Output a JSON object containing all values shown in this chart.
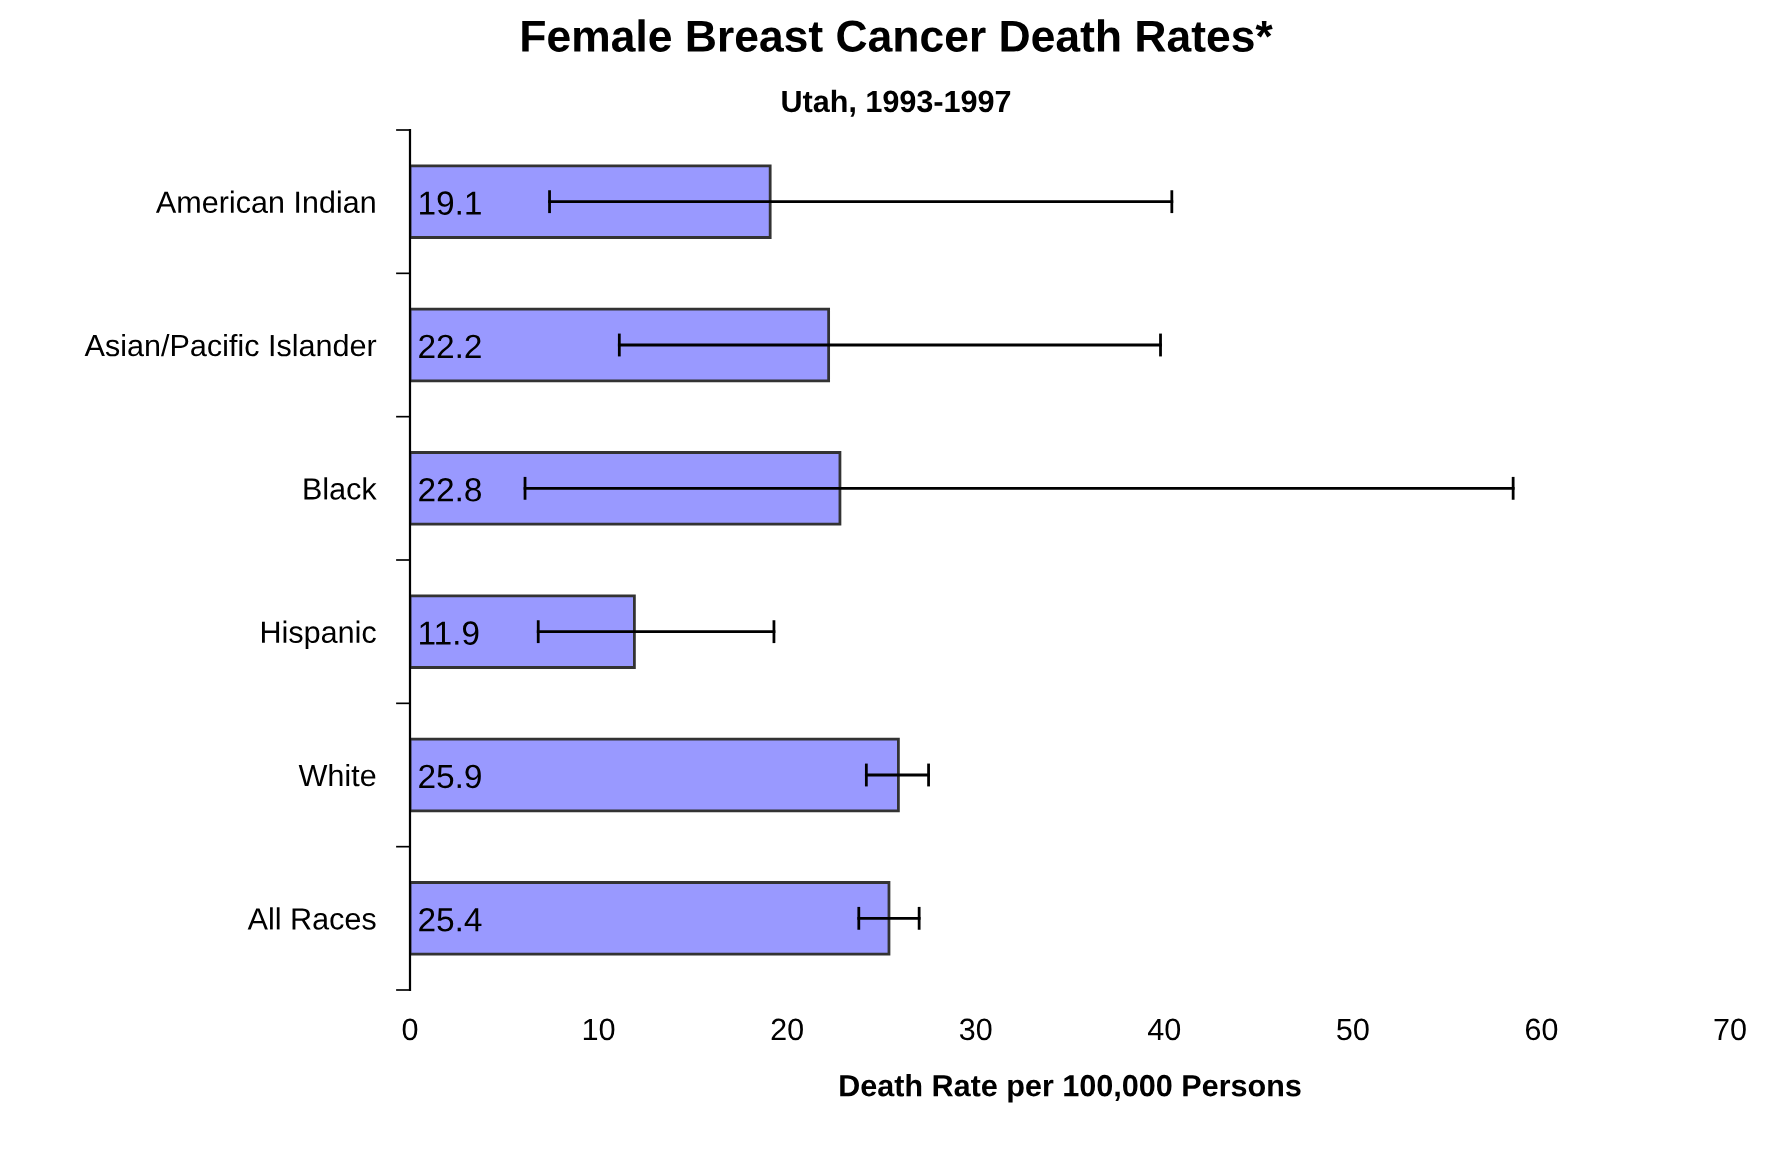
{
  "chart_data": {
    "type": "bar",
    "orientation": "horizontal",
    "title": "Female Breast Cancer Death Rates*",
    "subtitle": "Utah, 1993-1997",
    "xlabel": "Death Rate per 100,000 Persons",
    "categories": [
      "American Indian",
      "Asian/Pacific Islander",
      "Black",
      "Hispanic",
      "White",
      "All Races"
    ],
    "values": [
      19.1,
      22.2,
      22.8,
      11.9,
      25.9,
      25.4
    ],
    "errors": [
      [
        7.4,
        40.4
      ],
      [
        11.1,
        39.8
      ],
      [
        6.1,
        58.5
      ],
      [
        6.8,
        19.3
      ],
      [
        24.2,
        27.5
      ],
      [
        23.8,
        27.0
      ]
    ],
    "color": "#9999ff",
    "data_labels": true,
    "xlim": [
      0,
      70
    ],
    "xticks": [
      0,
      10,
      20,
      30,
      40,
      50,
      60,
      70
    ],
    "grid": false,
    "legend": false
  }
}
